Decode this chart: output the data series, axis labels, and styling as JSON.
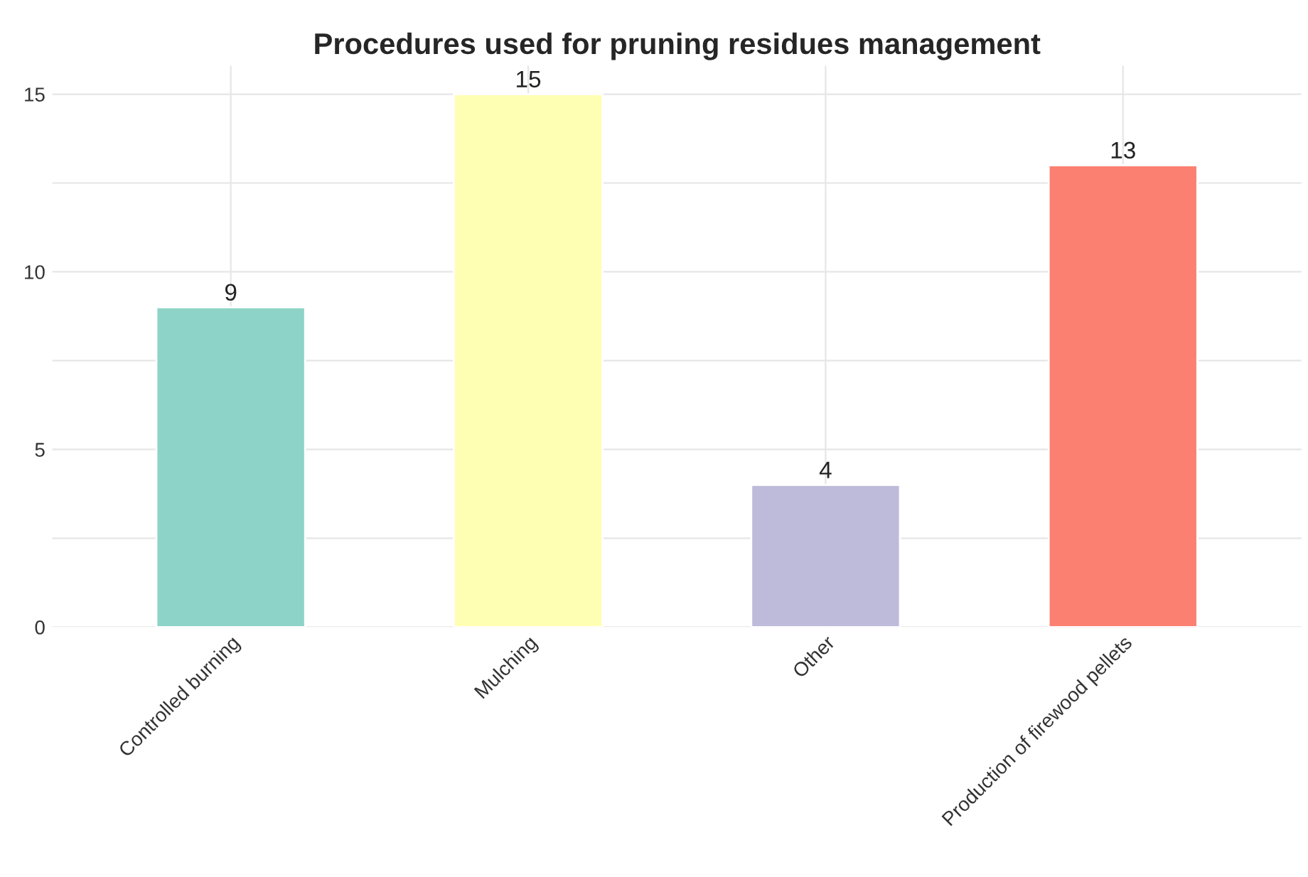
{
  "chart_data": {
    "type": "bar",
    "title": "Procedures used for pruning residues management",
    "categories": [
      "Controlled burning",
      "Mulching",
      "Other",
      "Production of firewood pellets"
    ],
    "values": [
      9,
      15,
      4,
      13
    ],
    "colors": [
      "#8dd3c7",
      "#ffffb3",
      "#bebada",
      "#fb8072"
    ],
    "ylim": [
      0,
      15.8
    ],
    "yticks": [
      0,
      {
        "value": 2.5,
        "label": null
      },
      5,
      {
        "value": 7.5,
        "label": null
      },
      10,
      {
        "value": 12.5,
        "label": null
      },
      15
    ],
    "grid": true,
    "data_labels": true,
    "legend": false
  }
}
